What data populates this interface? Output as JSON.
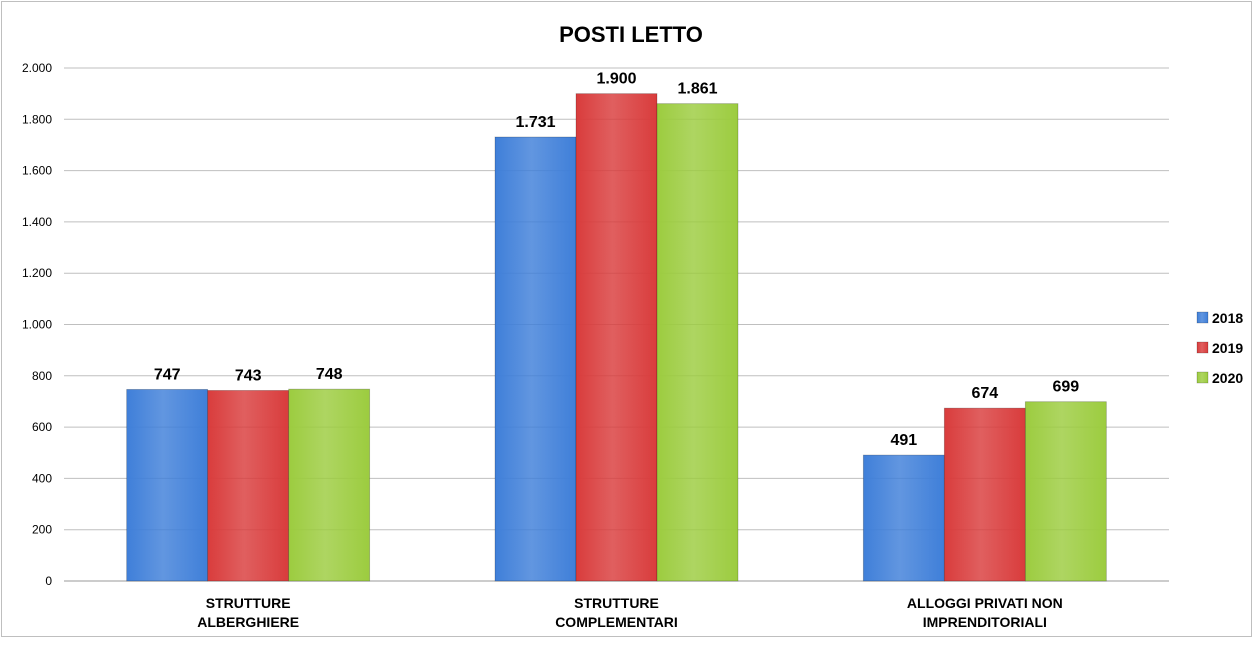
{
  "chart_data": {
    "type": "bar",
    "title": "POSTI LETTO",
    "categories": [
      [
        "STRUTTURE",
        "ALBERGHIERE"
      ],
      [
        "STRUTTURE",
        "COMPLEMENTARI"
      ],
      [
        "ALLOGGI PRIVATI NON",
        "IMPRENDITORIALI"
      ]
    ],
    "series": [
      {
        "name": "2018",
        "values": [
          747,
          1731,
          491
        ],
        "labels": [
          "747",
          "1.731",
          "491"
        ],
        "color": "#3f7fd9"
      },
      {
        "name": "2019",
        "values": [
          743,
          1900,
          674
        ],
        "labels": [
          "743",
          "1.900",
          "674"
        ],
        "color": "#d93c3c"
      },
      {
        "name": "2020",
        "values": [
          748,
          1861,
          699
        ],
        "labels": [
          "748",
          "1.861",
          "699"
        ],
        "color": "#9ccc3f"
      }
    ],
    "ylim": [
      0,
      2000
    ],
    "yticks": [
      0,
      200,
      400,
      600,
      800,
      1000,
      1200,
      1400,
      1600,
      1800,
      2000
    ],
    "ytick_labels": [
      "0",
      "200",
      "400",
      "600",
      "800",
      "1.000",
      "1.200",
      "1.400",
      "1.600",
      "1.800",
      "2.000"
    ],
    "xlabel": "",
    "ylabel": "",
    "grid": true,
    "legend_position": "right"
  }
}
